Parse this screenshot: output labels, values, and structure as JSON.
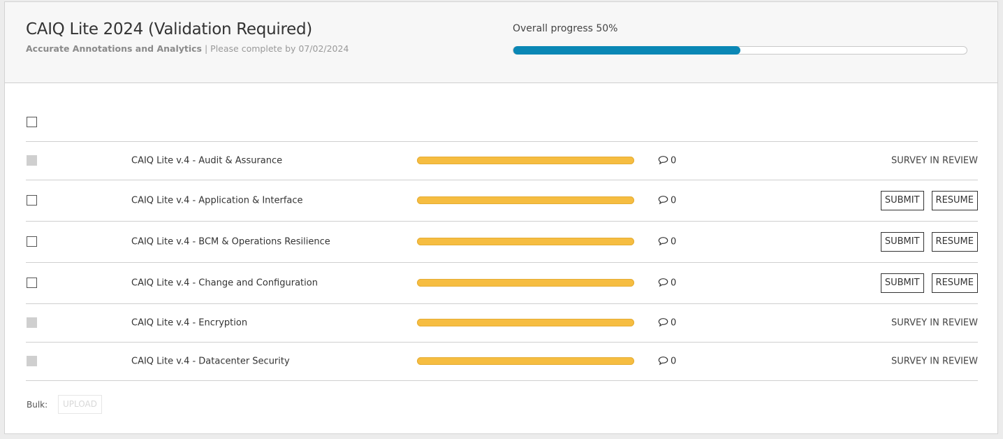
{
  "header": {
    "title": "CAIQ Lite 2024 (Validation Required)",
    "company": "Accurate Annotations and Analytics",
    "separator": " | ",
    "due": "Please complete by 07/02/2024",
    "progress_label": "Overall progress 50%",
    "progress_value": 0.5
  },
  "rows": [
    {
      "name": "CAIQ Lite v.4 - Audit & Assurance",
      "comments": "0",
      "status": "SURVEY IN REVIEW",
      "checkbox_enabled": false
    },
    {
      "name": "CAIQ Lite v.4 - Application & Interface",
      "comments": "0",
      "submit": "SUBMIT",
      "resume": "RESUME",
      "checkbox_enabled": true
    },
    {
      "name": "CAIQ Lite v.4 - BCM & Operations Resilience",
      "comments": "0",
      "submit": "SUBMIT",
      "resume": "RESUME",
      "checkbox_enabled": true
    },
    {
      "name": "CAIQ Lite v.4 - Change and Configuration",
      "comments": "0",
      "submit": "SUBMIT",
      "resume": "RESUME",
      "checkbox_enabled": true
    },
    {
      "name": "CAIQ Lite v.4 - Encryption",
      "comments": "0",
      "status": "SURVEY IN REVIEW",
      "checkbox_enabled": false
    },
    {
      "name": "CAIQ Lite v.4 - Datacenter Security",
      "comments": "0",
      "status": "SURVEY IN REVIEW",
      "checkbox_enabled": false
    }
  ],
  "bulk": {
    "label": "Bulk:",
    "upload": "UPLOAD"
  },
  "colors": {
    "overall_progress": "#0a87b5",
    "section_progress": "#f6bd41"
  },
  "icons": {
    "comment": "comment-icon"
  }
}
